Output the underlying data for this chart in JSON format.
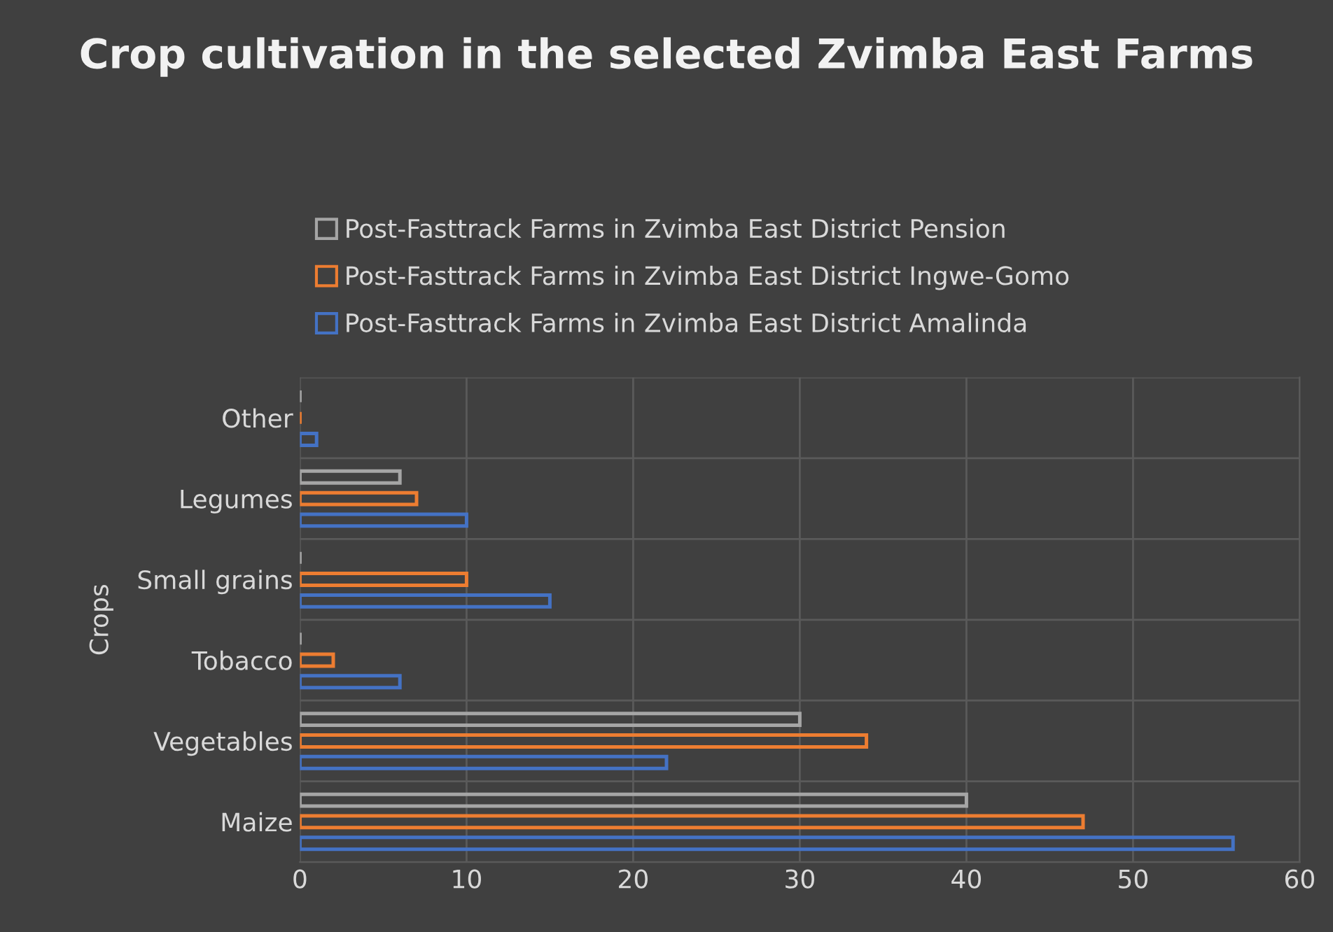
{
  "chart_data": {
    "type": "bar",
    "orientation": "horizontal",
    "title": "Crop cultivation in the selected Zvimba East Farms",
    "ylabel": "Crops",
    "categories": [
      "Other",
      "Legumes",
      "Small grains",
      "Tobacco",
      "Vegetables",
      "Maize"
    ],
    "series": [
      {
        "name": "Post-Fasttrack Farms in Zvimba East District Amalinda",
        "color": "#4472c4",
        "values": [
          1,
          10,
          15,
          6,
          22,
          56
        ]
      },
      {
        "name": "Post-Fasttrack Farms in Zvimba East District Ingwe-Gomo",
        "color": "#ed7d31",
        "values": [
          0,
          7,
          10,
          2,
          34,
          47
        ]
      },
      {
        "name": "Post-Fasttrack Farms in Zvimba East District Pension",
        "color": "#a5a5a5",
        "values": [
          0,
          6,
          0,
          0,
          30,
          40
        ]
      }
    ],
    "xlim": [
      0,
      60
    ],
    "xticks": [
      0,
      10,
      20,
      30,
      40,
      50,
      60
    ],
    "grid": true,
    "legend": "top"
  }
}
